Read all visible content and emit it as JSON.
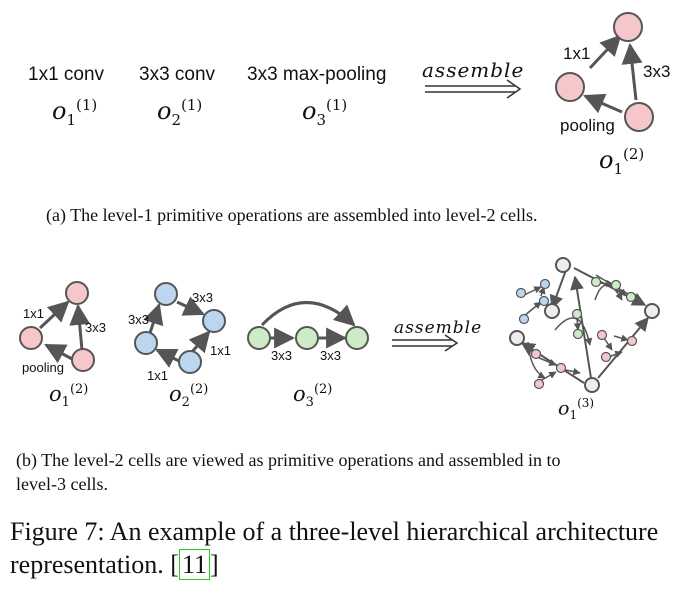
{
  "panel_a": {
    "ops": [
      {
        "name": "1x1 conv",
        "var": "o",
        "sub": "1",
        "sup": "(1)"
      },
      {
        "name": "3x3 conv",
        "var": "o",
        "sub": "2",
        "sup": "(1)"
      },
      {
        "name": "3x3 max-pooling",
        "var": "o",
        "sub": "3",
        "sup": "(1)"
      }
    ],
    "assemble": "assemble",
    "cell": {
      "edge_labels": [
        "1x1",
        "3x3",
        "pooling"
      ],
      "var": "o",
      "sub": "1",
      "sup": "(2)"
    },
    "caption": "(a)  The level-1 primitive operations are assembled into level-2 cells."
  },
  "panel_b": {
    "cells": [
      {
        "edge_labels": [
          "1x1",
          "3x3",
          "pooling"
        ],
        "var": "o",
        "sub": "1",
        "sup": "(2)"
      },
      {
        "edge_labels": [
          "3x3",
          "3x3",
          "1x1",
          "1x1"
        ],
        "var": "o",
        "sub": "2",
        "sup": "(2)"
      },
      {
        "edge_labels": [
          "3x3",
          "3x3"
        ],
        "var": "o",
        "sub": "3",
        "sup": "(2)"
      }
    ],
    "assemble": "assemble",
    "result": {
      "var": "o",
      "sub": "1",
      "sup": "(3)"
    },
    "caption_line1": "(b)  The level-2 cells are viewed as primitive operations and assembled in to",
    "caption_line2": "level-3 cells."
  },
  "figure": {
    "caption_line1": "Figure 7: An example of a three-level hierarchical architecture",
    "caption_line2_text": "representation. [",
    "citation": "11",
    "caption_line2_end": "]"
  },
  "colors": {
    "pink": "#f5c7cb",
    "blue": "#bcd6f0",
    "green": "#cdebc6",
    "gray": "#eeeeee",
    "stroke": "#555555",
    "cite_box": "#22cc22"
  }
}
